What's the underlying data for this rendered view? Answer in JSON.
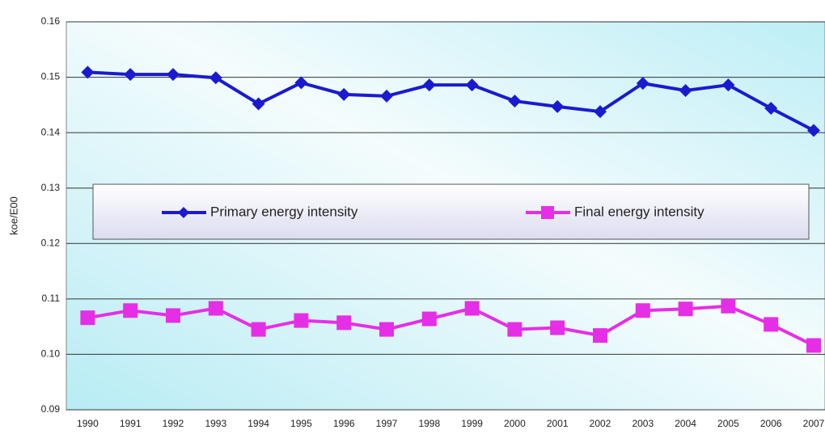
{
  "chart_data": {
    "type": "line",
    "y_label": "koe/E00",
    "categories": [
      "1990",
      "1991",
      "1992",
      "1993",
      "1994",
      "1995",
      "1996",
      "1997",
      "1998",
      "1999",
      "2000",
      "2001",
      "2002",
      "2003",
      "2004",
      "2005",
      "2006",
      "2007"
    ],
    "series": [
      {
        "name": "Primary energy intensity",
        "color": "#1a1ad0",
        "marker": "diamond",
        "values": [
          0.1509,
          0.1505,
          0.1505,
          0.1499,
          0.1452,
          0.149,
          0.1469,
          0.1466,
          0.1486,
          0.1486,
          0.1457,
          0.1447,
          0.1438,
          0.1489,
          0.1476,
          0.1486,
          0.1444,
          0.1404
        ]
      },
      {
        "name": "Final energy intensity",
        "color": "#e62ee6",
        "marker": "square",
        "values": [
          0.1066,
          0.1079,
          0.107,
          0.1083,
          0.1045,
          0.1061,
          0.1057,
          0.1045,
          0.1064,
          0.1083,
          0.1045,
          0.1048,
          0.1034,
          0.1079,
          0.1082,
          0.1087,
          0.1054,
          0.1016
        ]
      }
    ],
    "ylim": [
      0.09,
      0.16
    ],
    "yticks": [
      {
        "value": 0.09,
        "label": "0.09"
      },
      {
        "value": 0.1,
        "label": "0.10"
      },
      {
        "value": 0.11,
        "label": "0.11"
      },
      {
        "value": 0.12,
        "label": "0.12"
      },
      {
        "value": 0.13,
        "label": "0.13"
      },
      {
        "value": 0.14,
        "label": "0.14"
      },
      {
        "value": 0.15,
        "label": "0.15"
      },
      0.16
    ],
    "grid": true,
    "legend": "center"
  }
}
